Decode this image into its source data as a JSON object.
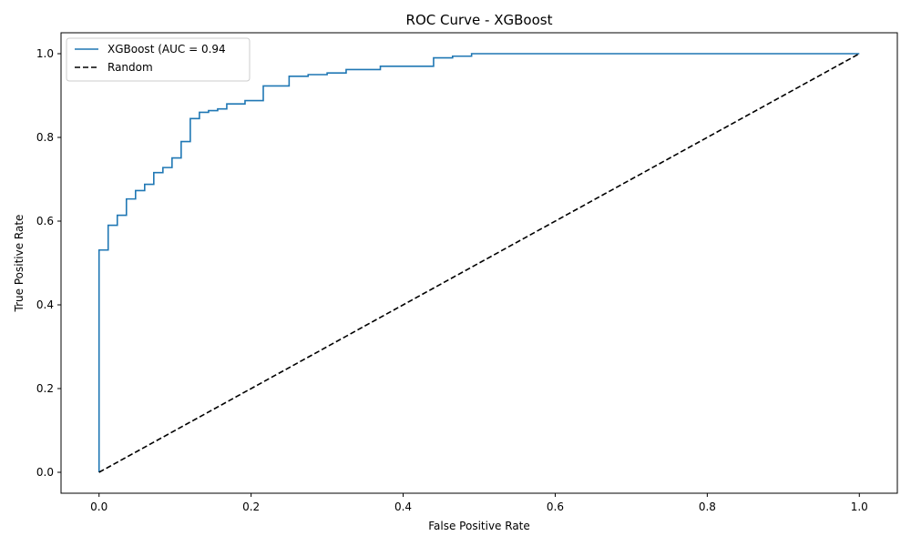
{
  "chart_data": {
    "type": "line",
    "title": "ROC Curve - XGBoost",
    "xlabel": "False Positive Rate",
    "ylabel": "True Positive Rate",
    "xlim": [
      -0.05,
      1.05
    ],
    "ylim": [
      -0.05,
      1.05
    ],
    "xticks": [
      0.0,
      0.2,
      0.4,
      0.6,
      0.8,
      1.0
    ],
    "yticks": [
      0.0,
      0.2,
      0.4,
      0.6,
      0.8,
      1.0
    ],
    "xtick_labels": [
      "0.0",
      "0.2",
      "0.4",
      "0.6",
      "0.8",
      "1.0"
    ],
    "ytick_labels": [
      "0.0",
      "0.2",
      "0.4",
      "0.6",
      "0.8",
      "1.0"
    ],
    "grid": false,
    "legend_position": "top-left",
    "series": [
      {
        "name": "XGBoost (AUC = 0.94",
        "color": "#1f77b4",
        "style": "step",
        "x": [
          0.0,
          0.0,
          0.012,
          0.012,
          0.024,
          0.024,
          0.036,
          0.036,
          0.048,
          0.048,
          0.06,
          0.06,
          0.072,
          0.072,
          0.084,
          0.084,
          0.096,
          0.096,
          0.108,
          0.108,
          0.12,
          0.12,
          0.132,
          0.132,
          0.144,
          0.144,
          0.156,
          0.156,
          0.168,
          0.168,
          0.192,
          0.192,
          0.216,
          0.216,
          0.25,
          0.25,
          0.275,
          0.275,
          0.3,
          0.3,
          0.325,
          0.325,
          0.37,
          0.37,
          0.44,
          0.44,
          0.465,
          0.465,
          0.49,
          0.49,
          1.0
        ],
        "y": [
          0.0,
          0.531,
          0.531,
          0.59,
          0.59,
          0.614,
          0.614,
          0.653,
          0.653,
          0.673,
          0.673,
          0.688,
          0.688,
          0.716,
          0.716,
          0.728,
          0.728,
          0.751,
          0.751,
          0.79,
          0.79,
          0.845,
          0.845,
          0.86,
          0.86,
          0.864,
          0.864,
          0.868,
          0.868,
          0.88,
          0.88,
          0.888,
          0.888,
          0.923,
          0.923,
          0.946,
          0.946,
          0.95,
          0.95,
          0.954,
          0.954,
          0.962,
          0.962,
          0.97,
          0.97,
          0.99,
          0.99,
          0.994,
          0.994,
          1.0,
          1.0
        ]
      },
      {
        "name": "Random",
        "color": "#000000",
        "style": "dashed",
        "x": [
          0.0,
          1.0
        ],
        "y": [
          0.0,
          1.0
        ]
      }
    ]
  }
}
